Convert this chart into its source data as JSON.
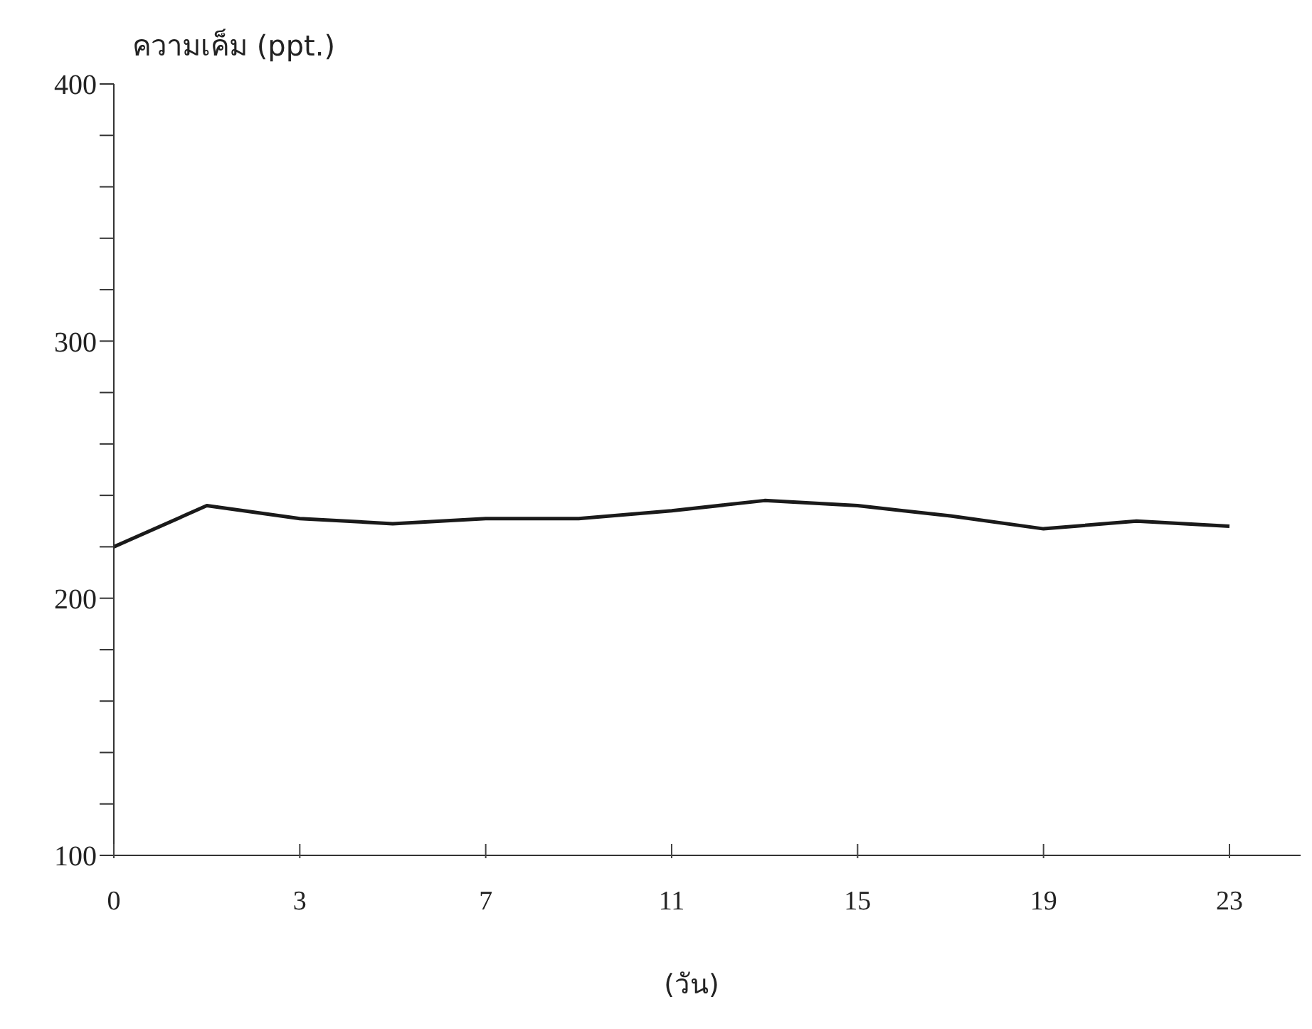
{
  "chart_data": {
    "type": "line",
    "ylabel": "ความเค็ม (ppt.)",
    "xlabel": "(วัน)",
    "categories": [
      "0",
      null,
      "3",
      null,
      "7",
      null,
      "11",
      null,
      "15",
      null,
      "19",
      null,
      "23"
    ],
    "series": [
      {
        "color": "#1a1a1a",
        "values": [
          220,
          236,
          231,
          229,
          231,
          231,
          234,
          238,
          236,
          232,
          227,
          230,
          228
        ]
      }
    ],
    "ylim": [
      100,
      400
    ],
    "yticks": [
      100,
      {
        "value": 120,
        "label": null
      },
      {
        "value": 140,
        "label": null
      },
      {
        "value": 160,
        "label": null
      },
      {
        "value": 180,
        "label": null
      },
      200,
      {
        "value": 220,
        "label": null
      },
      {
        "value": 240,
        "label": null
      },
      {
        "value": 260,
        "label": null
      },
      {
        "value": 280,
        "label": null
      },
      300,
      {
        "value": 320,
        "label": null
      },
      {
        "value": 340,
        "label": null
      },
      {
        "value": 360,
        "label": null
      },
      {
        "value": 380,
        "label": null
      },
      400
    ],
    "grid": false,
    "legend": false,
    "marker": "none",
    "line_style": "solid"
  }
}
